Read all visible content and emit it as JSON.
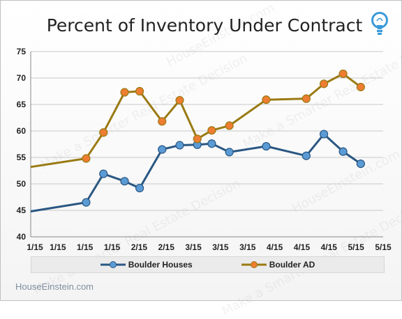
{
  "title": "Percent of Inventory Under Contract",
  "footer": "HouseEinstein.com",
  "watermark": "Make a Smarter Real Estate Decision",
  "watermark_brand": "HouseEinstein.com",
  "icon": "lightbulb-icon",
  "colors": {
    "houses": "#2a5783",
    "houses_marker": "#5b9bd5",
    "ad": "#9a7a13",
    "ad_marker": "#ed7d31"
  },
  "chart_data": {
    "type": "line",
    "title": "Percent of Inventory Under Contract",
    "ylim": [
      40,
      75
    ],
    "yticks": [
      40,
      45,
      50,
      55,
      60,
      65,
      70,
      75
    ],
    "xlim": [
      0,
      11
    ],
    "xticks": [
      "1/15",
      "1/15",
      "1/15",
      "1/15",
      "2/15",
      "2/15",
      "3/15",
      "3/15",
      "3/15",
      "4/15",
      "4/15",
      "4/15",
      "5/15",
      "5/15"
    ],
    "grid": true,
    "legend_position": "bottom",
    "series": [
      {
        "name": "Boulder Houses",
        "points": [
          {
            "x": 0.0,
            "y": 44.8,
            "marker": false
          },
          {
            "x": 1.73,
            "y": 46.5,
            "marker": true
          },
          {
            "x": 2.27,
            "y": 51.9,
            "marker": true
          },
          {
            "x": 2.93,
            "y": 50.5,
            "marker": true
          },
          {
            "x": 3.4,
            "y": 49.2,
            "marker": true
          },
          {
            "x": 4.1,
            "y": 56.5,
            "marker": true
          },
          {
            "x": 4.65,
            "y": 57.3,
            "marker": true
          },
          {
            "x": 5.2,
            "y": 57.4,
            "marker": true
          },
          {
            "x": 5.65,
            "y": 57.6,
            "marker": true
          },
          {
            "x": 6.2,
            "y": 56.0,
            "marker": true
          },
          {
            "x": 7.35,
            "y": 57.1,
            "marker": true
          },
          {
            "x": 8.6,
            "y": 55.3,
            "marker": true
          },
          {
            "x": 9.15,
            "y": 59.4,
            "marker": true
          },
          {
            "x": 9.75,
            "y": 56.1,
            "marker": true
          },
          {
            "x": 10.3,
            "y": 53.8,
            "marker": true
          }
        ]
      },
      {
        "name": "Boulder AD",
        "points": [
          {
            "x": 0.0,
            "y": 53.2,
            "marker": false
          },
          {
            "x": 1.73,
            "y": 54.8,
            "marker": true
          },
          {
            "x": 2.27,
            "y": 59.7,
            "marker": true
          },
          {
            "x": 2.93,
            "y": 67.3,
            "marker": true
          },
          {
            "x": 3.4,
            "y": 67.5,
            "marker": true
          },
          {
            "x": 4.1,
            "y": 61.8,
            "marker": true
          },
          {
            "x": 4.65,
            "y": 65.8,
            "marker": true
          },
          {
            "x": 5.2,
            "y": 58.5,
            "marker": true
          },
          {
            "x": 5.65,
            "y": 60.1,
            "marker": true
          },
          {
            "x": 6.2,
            "y": 61.0,
            "marker": true
          },
          {
            "x": 7.35,
            "y": 65.9,
            "marker": true
          },
          {
            "x": 8.6,
            "y": 66.1,
            "marker": true
          },
          {
            "x": 9.15,
            "y": 68.9,
            "marker": true
          },
          {
            "x": 9.75,
            "y": 70.8,
            "marker": true
          },
          {
            "x": 10.3,
            "y": 68.3,
            "marker": true
          }
        ]
      }
    ]
  }
}
